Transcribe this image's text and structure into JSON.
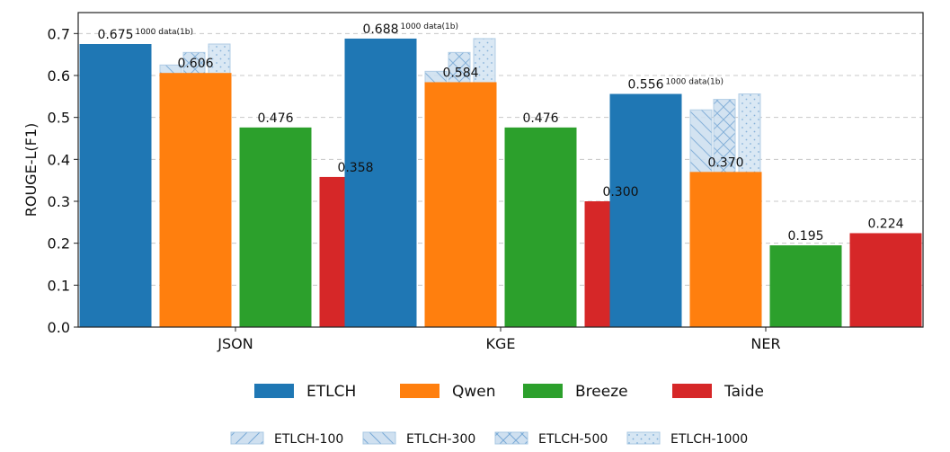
{
  "chart_data": {
    "type": "bar",
    "categories": [
      "JSON",
      "KGE",
      "NER"
    ],
    "ylabel": "ROUGE-L(F1)",
    "ylim": [
      0.0,
      0.75
    ],
    "yticks": [
      "0.0",
      "0.1",
      "0.2",
      "0.3",
      "0.4",
      "0.5",
      "0.6",
      "0.7"
    ],
    "grid": true,
    "main_series": [
      {
        "name": "ETLCH",
        "color": "#1f77b4",
        "values": [
          0.675,
          0.688,
          0.556
        ],
        "labels": [
          "0.675",
          "0.688",
          "0.556"
        ]
      },
      {
        "name": "Qwen",
        "color": "#ff7f0e",
        "values": [
          0.606,
          0.584,
          0.37
        ],
        "labels": [
          "0.606",
          "0.584",
          "0.370"
        ]
      },
      {
        "name": "Breeze",
        "color": "#2ca02c",
        "values": [
          0.476,
          0.476,
          0.195
        ],
        "labels": [
          "0.476",
          "0.476",
          "0.195"
        ]
      },
      {
        "name": "Taide",
        "color": "#d62728",
        "values": [
          0.358,
          0.3,
          0.224
        ],
        "labels": [
          "0.358",
          "0.300",
          "0.224"
        ]
      }
    ],
    "variant_series": [
      {
        "name": "ETLCH-100",
        "hatch": "diag-fwd",
        "values": [
          0.0,
          0.0,
          0.0
        ]
      },
      {
        "name": "ETLCH-300",
        "hatch": "diag-back",
        "values": [
          0.625,
          0.61,
          0.518
        ]
      },
      {
        "name": "ETLCH-500",
        "hatch": "cross",
        "values": [
          0.655,
          0.655,
          0.543
        ]
      },
      {
        "name": "ETLCH-1000",
        "hatch": "dots",
        "values": [
          0.675,
          0.688,
          0.556
        ]
      }
    ],
    "annotation": "1000 data(1b)",
    "legend_main_placement": "bottom",
    "legend_variant_placement": "bottom"
  }
}
